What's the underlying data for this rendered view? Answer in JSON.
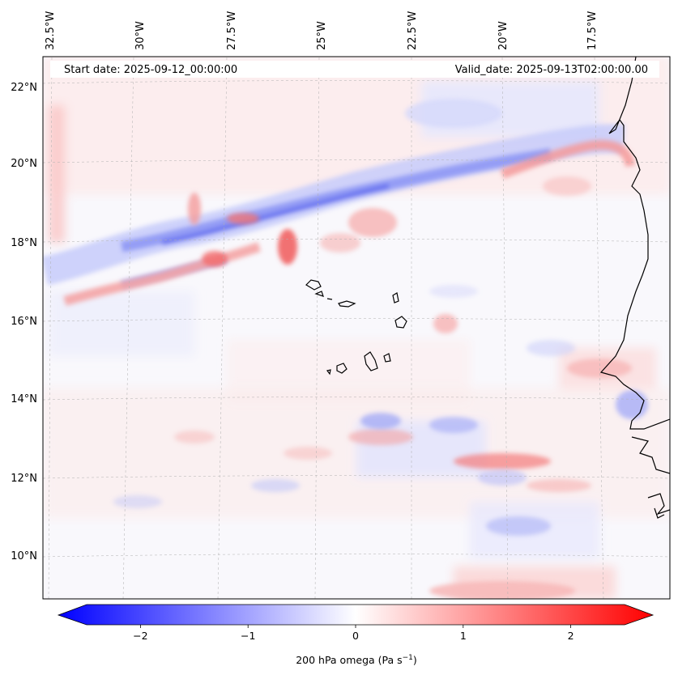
{
  "map": {
    "start_date": "Start date: 2025-09-12_00:00:00",
    "valid_date": "Valid_date: 2025-09-13T02:00:00.00",
    "lon_labels": [
      "32.5°W",
      "30°W",
      "27.5°W",
      "25°W",
      "22.5°W",
      "20°W",
      "17.5°W"
    ],
    "lat_labels": [
      "22°N",
      "20°N",
      "18°N",
      "16°N",
      "14°N",
      "12°N",
      "10°N"
    ],
    "field": "200 hPa omega",
    "colors": {
      "negative": "#0000ff",
      "positive": "#ff0000",
      "neutral": "#ffffff",
      "coast": "#000000",
      "grid": "#b0b0b0"
    }
  },
  "colorbar": {
    "label_main": "200 hPa omega (Pa s",
    "label_exp": "−1",
    "label_end": ")",
    "ticks": [
      "−2",
      "−1",
      "0",
      "1",
      "2"
    ],
    "tick_values": [
      -2,
      -1,
      0,
      1,
      2
    ],
    "vmin": -2.5,
    "vmax": 2.5
  }
}
